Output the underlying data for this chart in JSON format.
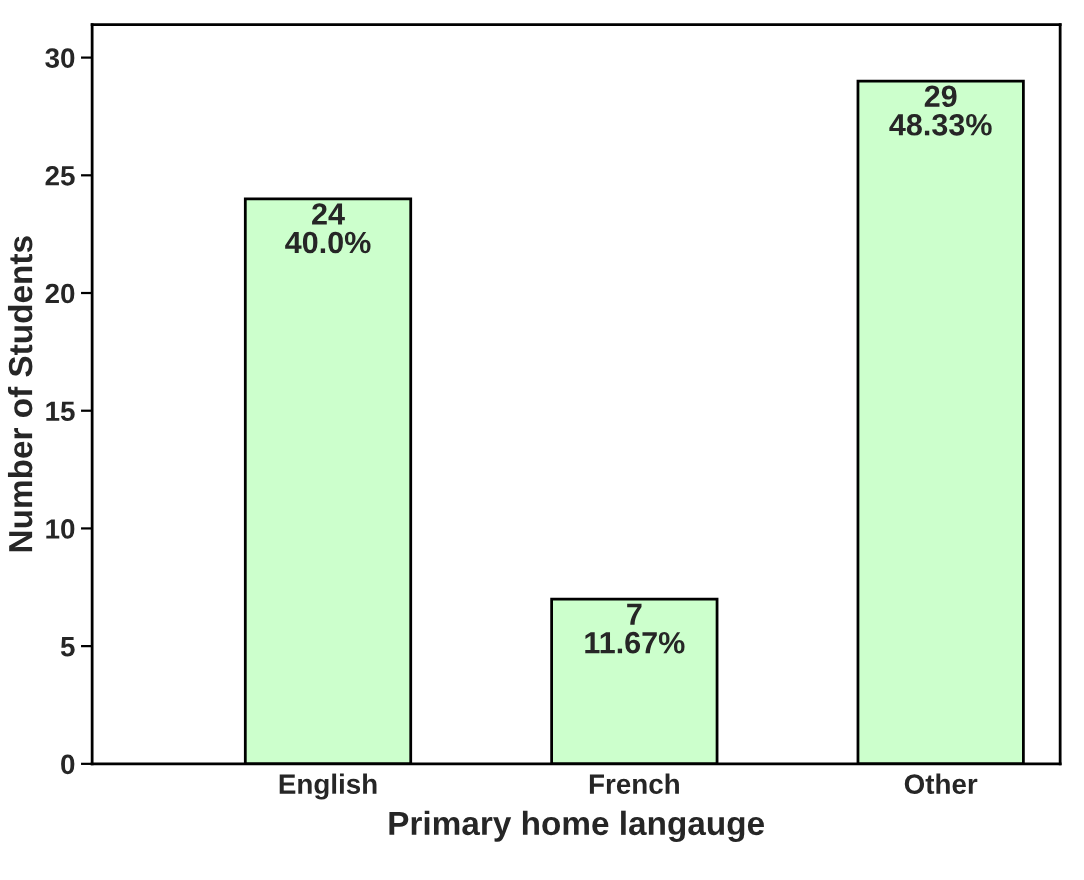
{
  "chart_data": {
    "type": "bar",
    "xlabel": "Primary home langauge",
    "ylabel": "Number of Students",
    "categories": [
      "English",
      "French",
      "Other"
    ],
    "values": [
      24,
      7,
      29
    ],
    "value_labels": [
      "24\n40.0%",
      "7\n11.67%",
      "29\n48.33%"
    ],
    "color": "#ccffcc",
    "ylim": [
      0,
      31.4
    ],
    "yticks": [
      0,
      5,
      10,
      15,
      20,
      25,
      30
    ],
    "grid": false,
    "legend": false
  }
}
